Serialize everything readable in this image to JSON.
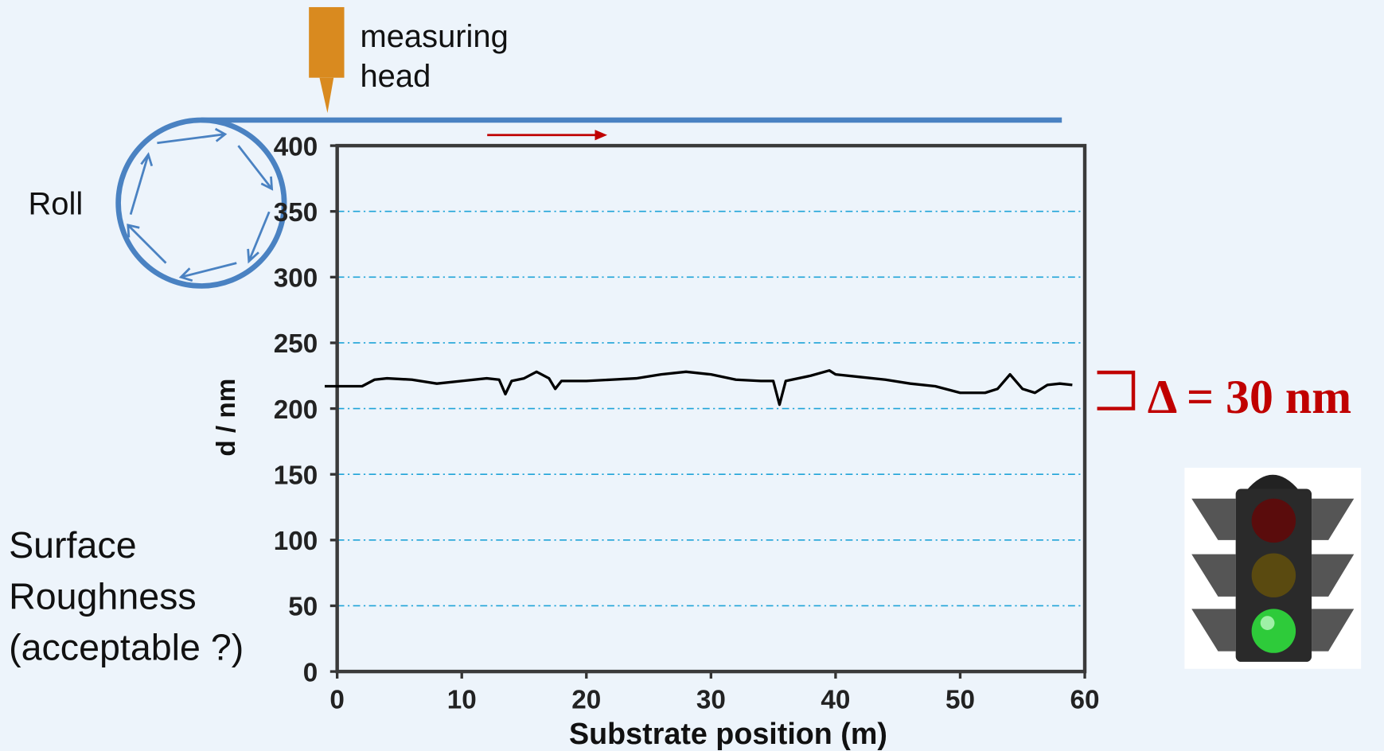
{
  "chart_data": {
    "type": "line",
    "x_label": "Substrate position (m)",
    "y_label": "d / nm",
    "annotations": {
      "head": [
        "measuring",
        "head"
      ],
      "roll": "Roll",
      "question": [
        "Surface",
        "Roughness",
        "(acceptable ?)"
      ],
      "delta": "Δ = 30 nm"
    },
    "xlim": [
      0,
      60
    ],
    "xticks": [
      0,
      10,
      20,
      30,
      40,
      50,
      60
    ],
    "ylim": [
      0,
      400
    ],
    "yticks": [
      0,
      50,
      100,
      150,
      200,
      250,
      300,
      350,
      400
    ],
    "grid": true,
    "grid_color": "#1fa3d8",
    "line_color": "#000000",
    "x": [
      -1,
      0,
      2,
      3,
      4,
      6,
      8,
      10,
      12,
      13,
      13.5,
      14,
      15,
      16,
      17,
      17.5,
      18,
      20,
      22,
      24,
      26,
      28,
      30,
      32,
      34,
      35,
      35.5,
      36,
      38,
      39.5,
      40,
      42,
      44,
      46,
      48,
      50,
      52,
      53,
      54,
      55,
      56,
      57,
      58,
      59
    ],
    "values": [
      217,
      217,
      217,
      222,
      223,
      222,
      219,
      221,
      223,
      222,
      211,
      221,
      223,
      228,
      223,
      215,
      221,
      221,
      222,
      223,
      226,
      228,
      226,
      222,
      221,
      221,
      203,
      221,
      225,
      229,
      226,
      224,
      222,
      219,
      217,
      212,
      212,
      215,
      226,
      215,
      212,
      218,
      219,
      218
    ]
  }
}
